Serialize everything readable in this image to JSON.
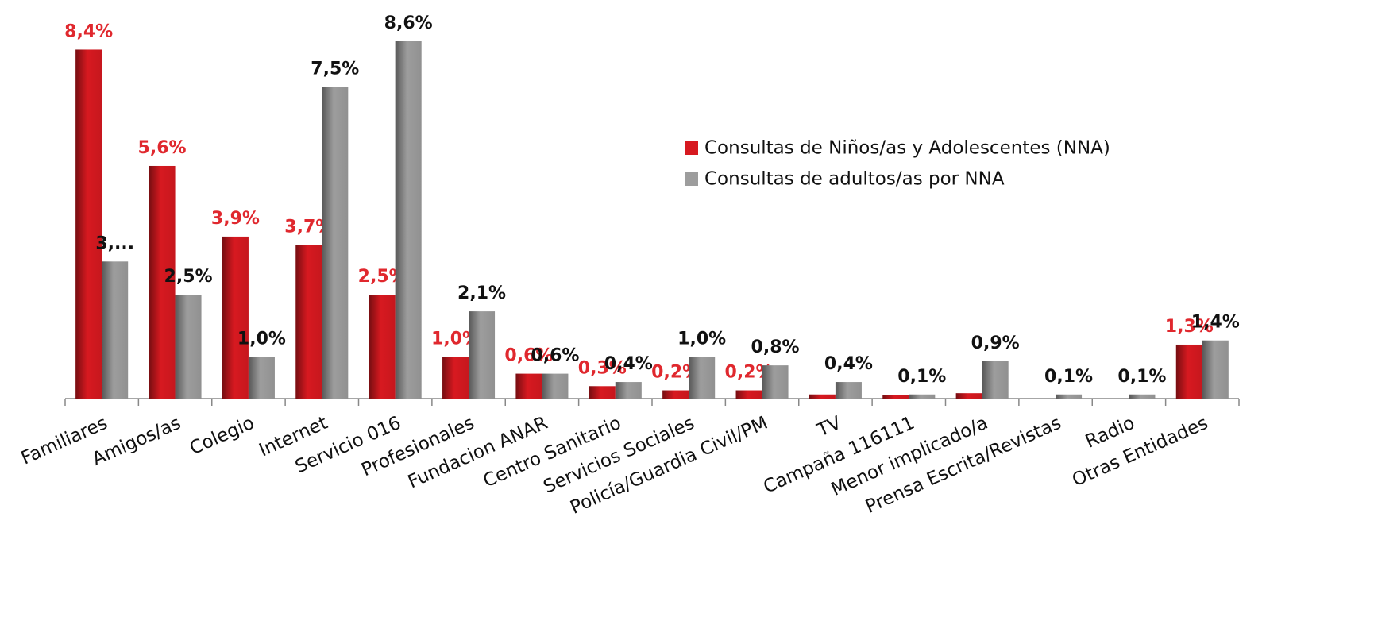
{
  "chart_data": {
    "type": "bar",
    "categories": [
      "Familiares",
      "Amigos/as",
      "Colegio",
      "Internet",
      "Servicio 016",
      "Profesionales",
      "Fundacion ANAR",
      "Centro Sanitario",
      "Servicios Sociales",
      "Policía/Guardia Civil/PM",
      "TV",
      "Campaña 116111",
      "Menor implicado/a",
      "Prensa Escrita/Revistas",
      "Radio",
      "Otras Entidades"
    ],
    "series": [
      {
        "name": "Consultas de Niños/as y Adolescentes (NNA)",
        "color": "#d71920",
        "label_color": "#e0282e",
        "values": [
          8.4,
          5.6,
          3.9,
          3.7,
          2.5,
          1.0,
          0.6,
          0.3,
          0.2,
          0.2,
          0.1,
          0.08,
          0.13,
          0,
          0,
          1.3
        ],
        "value_labels": [
          "8,4%",
          "5,6%",
          "3,9%",
          "3,7%",
          "2,5%",
          "1,0%",
          "0,6%",
          "0,3%",
          "0,2%",
          "0,2%",
          null,
          null,
          null,
          null,
          null,
          "1,3%"
        ]
      },
      {
        "name": "Consultas de adultos/as por NNA",
        "color": "#9d9d9d",
        "label_color": "#111111",
        "values": [
          3.3,
          2.5,
          1.0,
          7.5,
          8.6,
          2.1,
          0.6,
          0.4,
          1.0,
          0.8,
          0.4,
          0.1,
          0.9,
          0.1,
          0.1,
          1.4
        ],
        "value_labels": [
          "3,...",
          "2,5%",
          "1,0%",
          "7,5%",
          "8,6%",
          "2,1%",
          "0,6%",
          "0,4%",
          "1,0%",
          "0,8%",
          "0,4%",
          "0,1%",
          "0,9%",
          "0,1%",
          "0,1%",
          "1,4%"
        ]
      }
    ],
    "legend": "right"
  }
}
